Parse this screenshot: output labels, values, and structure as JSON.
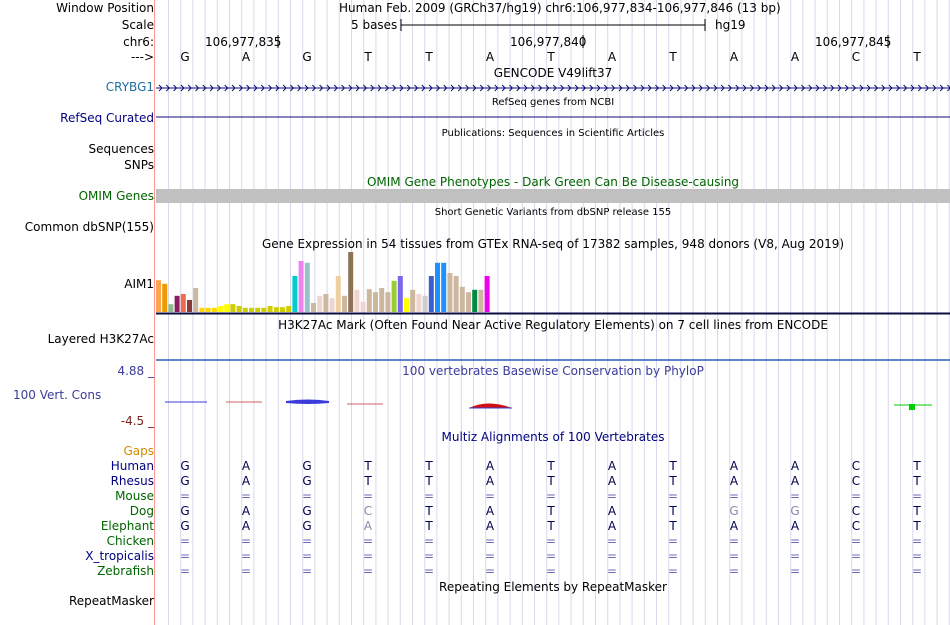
{
  "header": {
    "window_position_label": "Window Position",
    "window_position_value": "Human Feb. 2009 (GRCh37/hg19)   chr6:106,977,834-106,977,846 (13 bp)",
    "scale_label": "Scale",
    "scale_text": "5 bases",
    "scale_db": "hg19",
    "chrom_label": "chr6:",
    "arrow_label": "--->",
    "positions": [
      "106,977,835",
      "106,977,840",
      "106,977,845"
    ],
    "bases": [
      "G",
      "A",
      "G",
      "T",
      "T",
      "A",
      "T",
      "A",
      "T",
      "A",
      "A",
      "C",
      "T"
    ]
  },
  "tracks": {
    "gencode": {
      "title": "GENCODE V49lift37",
      "gene_label": "CRYBG1"
    },
    "refseq": {
      "title": "RefSeq genes from NCBI",
      "label": "RefSeq Curated"
    },
    "publications": {
      "title": "Publications: Sequences in Scientific Articles",
      "label_line1": "Sequences",
      "label_line2": "SNPs"
    },
    "omim": {
      "title": "OMIM Gene Phenotypes - Dark Green Can Be Disease-causing",
      "label": "OMIM Genes"
    },
    "dbsnp": {
      "title": "Short Genetic Variants from dbSNP release 155",
      "label": "Common dbSNP(155)"
    },
    "gtex": {
      "title": "Gene Expression in 54 tissues from GTEx RNA-seq of 17382 samples, 948 donors (V8, Aug 2019)",
      "label": "AIM1",
      "values": [
        0.53,
        0.47,
        0.13,
        0.27,
        0.3,
        0.2,
        0.4,
        0.07,
        0.07,
        0.07,
        0.1,
        0.13,
        0.13,
        0.1,
        0.07,
        0.07,
        0.07,
        0.07,
        0.1,
        0.08,
        0.08,
        0.1,
        0.6,
        0.85,
        0.82,
        0.15,
        0.27,
        0.3,
        0.23,
        0.6,
        0.27,
        1.0,
        0.37,
        0.17,
        0.38,
        0.33,
        0.4,
        0.33,
        0.52,
        0.6,
        0.23,
        0.37,
        0.3,
        0.27,
        0.6,
        0.82,
        0.82,
        0.65,
        0.6,
        0.42,
        0.33,
        0.37,
        0.37,
        0.6
      ],
      "colors": [
        "#ffa54f",
        "#ee9a00",
        "#8fbc8f",
        "#8b1c62",
        "#ee6a50",
        "#8b3a3a",
        "#cdb79e",
        "#ffd700",
        "#ffd700",
        "#ffd700",
        "#ffff00",
        "#ffff00",
        "#cdcd00",
        "#cdcd00",
        "#cdcd00",
        "#cdcd00",
        "#cdcd00",
        "#cdcd00",
        "#cdcd00",
        "#cdcd00",
        "#cdcd00",
        "#cdcd00",
        "#00cdcd",
        "#ee82ee",
        "#9ac0cd",
        "#cdb79e",
        "#eed5d2",
        "#cdb79e",
        "#eed5d2",
        "#eecfa1",
        "#cdb79e",
        "#8b7355",
        "#eed5d2",
        "#eed5d2",
        "#cdb79e",
        "#cdb79e",
        "#cdb79e",
        "#cdb79e",
        "#9acd32",
        "#7a67ee",
        "#ffff00",
        "#cdb79e",
        "#eed5d2",
        "#cdcdcd",
        "#3a5fcd",
        "#1e90ff",
        "#1e90ff",
        "#cdb79e",
        "#cdb79e",
        "#cdb79e",
        "#cdb79e",
        "#008b45",
        "#cdb79e",
        "#ee00ee"
      ]
    },
    "h3k27ac": {
      "title": "H3K27Ac Mark (Often Found Near Active Regulatory Elements) on 7 cell lines from ENCODE",
      "label": "Layered H3K27Ac"
    },
    "phylop": {
      "title": "100 vertebrates Basewise Conservation by PhyloP",
      "label": "100 Vert. Cons",
      "max_label": "4.88 _",
      "min_label": "-4.5 _"
    },
    "multiz": {
      "title": "Multiz Alignments of 100 Vertebrates",
      "gaps_label": "Gaps",
      "species": [
        {
          "name": "Human",
          "color": "#000080",
          "bases": [
            "G",
            "A",
            "G",
            "T",
            "T",
            "A",
            "T",
            "A",
            "T",
            "A",
            "A",
            "C",
            "T"
          ]
        },
        {
          "name": "Rhesus",
          "color": "#000080",
          "bases": [
            "G",
            "A",
            "G",
            "T",
            "T",
            "A",
            "T",
            "A",
            "T",
            "A",
            "A",
            "C",
            "T"
          ]
        },
        {
          "name": "Mouse",
          "color": "#006400",
          "bases": [
            "=",
            "=",
            "=",
            "=",
            "=",
            "=",
            "=",
            "=",
            "=",
            "=",
            "=",
            "=",
            "="
          ]
        },
        {
          "name": "Dog",
          "color": "#006400",
          "bases": [
            "G",
            "A",
            "G",
            "C",
            "T",
            "A",
            "T",
            "A",
            "T",
            "G",
            "G",
            "C",
            "T"
          ]
        },
        {
          "name": "Elephant",
          "color": "#006400",
          "bases": [
            "G",
            "A",
            "G",
            "A",
            "T",
            "A",
            "T",
            "A",
            "T",
            "A",
            "A",
            "C",
            "T"
          ]
        },
        {
          "name": "Chicken",
          "color": "#006400",
          "bases": [
            "=",
            "=",
            "=",
            "=",
            "=",
            "=",
            "=",
            "=",
            "=",
            "=",
            "=",
            "=",
            "="
          ]
        },
        {
          "name": "X_tropicalis",
          "color": "#000080",
          "bases": [
            "=",
            "=",
            "=",
            "=",
            "=",
            "=",
            "=",
            "=",
            "=",
            "=",
            "=",
            "=",
            "="
          ]
        },
        {
          "name": "Zebrafish",
          "color": "#006400",
          "bases": [
            "=",
            "=",
            "=",
            "=",
            "=",
            "=",
            "=",
            "=",
            "=",
            "=",
            "=",
            "=",
            "="
          ]
        }
      ]
    },
    "repeatmasker": {
      "title": "Repeating Elements by RepeatMasker",
      "label": "RepeatMasker"
    }
  },
  "colors": {
    "gene_blue": "#0c0c78",
    "divider_red": "#ff9999",
    "grid": "#d8d8ec",
    "omim_gray": "#c0c0c0"
  }
}
